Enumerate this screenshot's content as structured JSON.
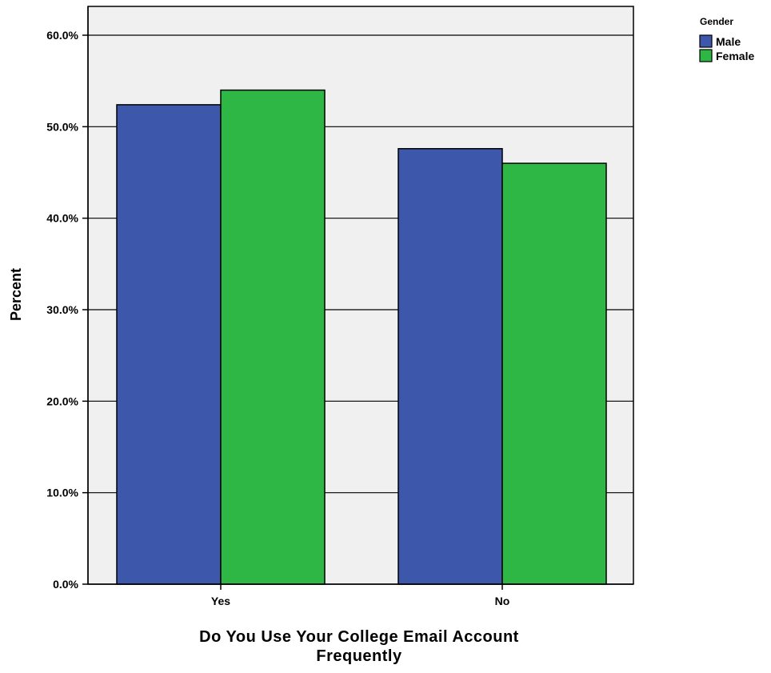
{
  "chart_data": {
    "type": "bar",
    "categories": [
      "Yes",
      "No"
    ],
    "series": [
      {
        "name": "Male",
        "values": [
          52.4,
          47.6
        ],
        "color": "#3d58ab"
      },
      {
        "name": "Female",
        "values": [
          54.0,
          46.0
        ],
        "color": "#2fb746"
      }
    ],
    "ylim": [
      0,
      60
    ],
    "yticks": [
      0,
      10,
      20,
      30,
      40,
      50,
      60
    ],
    "ytick_labels": [
      "0.0%",
      "10.0%",
      "20.0%",
      "30.0%",
      "40.0%",
      "50.0%",
      "60.0%"
    ],
    "ylabel": "Percent",
    "xlabel_lines": [
      "Do You Use Your College Email Account",
      "Frequently"
    ],
    "legend": {
      "title": "Gender",
      "placement": "top-right"
    },
    "grid": true,
    "plot_background": "#f0f0f0"
  }
}
